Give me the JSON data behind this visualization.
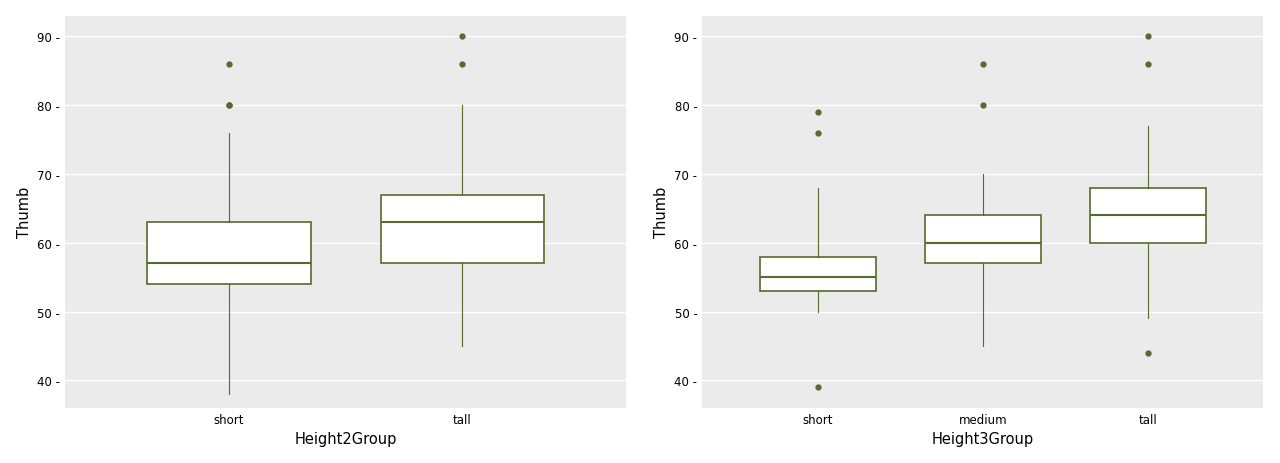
{
  "plot1": {
    "xlabel": "Height2Group",
    "ylabel": "Thumb",
    "ylim": [
      36,
      93
    ],
    "yticks": [
      40,
      50,
      60,
      70,
      80,
      90
    ],
    "groups": [
      "short",
      "tall"
    ],
    "boxes": [
      {
        "q1": 54.0,
        "median": 57.0,
        "q3": 63.0,
        "whislo": 38.0,
        "whishi": 76.0,
        "fliers": [
          80,
          80,
          86
        ]
      },
      {
        "q1": 57.0,
        "median": 63.0,
        "q3": 67.0,
        "whislo": 45.0,
        "whishi": 80.0,
        "fliers": [
          86,
          90
        ]
      }
    ]
  },
  "plot2": {
    "xlabel": "Height3Group",
    "ylabel": "Thumb",
    "ylim": [
      36,
      93
    ],
    "yticks": [
      40,
      50,
      60,
      70,
      80,
      90
    ],
    "groups": [
      "short",
      "medium",
      "tall"
    ],
    "boxes": [
      {
        "q1": 53.0,
        "median": 55.0,
        "q3": 58.0,
        "whislo": 50.0,
        "whishi": 68.0,
        "fliers": [
          39,
          76,
          79
        ]
      },
      {
        "q1": 57.0,
        "median": 60.0,
        "q3": 64.0,
        "whislo": 45.0,
        "whishi": 70.0,
        "fliers": [
          80,
          86
        ]
      },
      {
        "q1": 60.0,
        "median": 64.0,
        "q3": 68.0,
        "whislo": 49.0,
        "whishi": 77.0,
        "fliers": [
          44,
          86,
          90
        ]
      }
    ]
  },
  "box_color": "#556B2F",
  "bg_color": "#EBEBEB",
  "face_color": "#FFFFFF",
  "grid_color": "#FFFFFF",
  "tick_fontsize": 8.5,
  "label_fontsize": 10.5
}
